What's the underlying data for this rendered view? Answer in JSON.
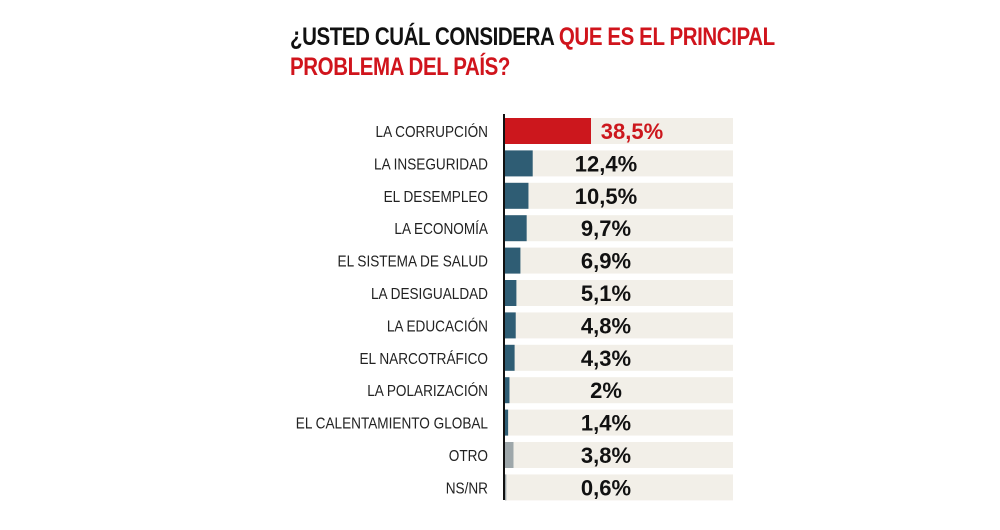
{
  "title": {
    "part1": "¿USTED CUÁL CONSIDERA ",
    "part2": "QUE ES EL PRINCIPAL",
    "part3": "PROBLEMA DEL PAÍS?"
  },
  "colors": {
    "highlight": "#cc171d",
    "main": "#2f5d74",
    "other": "#9ea7aa",
    "band": "#f2efe8",
    "title_red": "#d0141c"
  },
  "chart_data": {
    "type": "bar",
    "orientation": "horizontal",
    "categories": [
      "LA CORRUPCIÓN",
      "LA INSEGURIDAD",
      "EL DESEMPLEO",
      "LA ECONOMÍA",
      "EL SISTEMA DE SALUD",
      "LA DESIGUALDAD",
      "LA EDUCACIÓN",
      "EL NARCOTRÁFICO",
      "LA POLARIZACIÓN",
      "EL CALENTAMIENTO GLOBAL",
      "OTRO",
      "NS/NR"
    ],
    "values": [
      38.5,
      12.4,
      10.5,
      9.7,
      6.9,
      5.1,
      4.8,
      4.3,
      2,
      1.4,
      3.8,
      0.6
    ],
    "labels": [
      "38,5%",
      "12,4%",
      "10,5%",
      "9,7%",
      "6,9%",
      "5,1%",
      "4,8%",
      "4,3%",
      "2%",
      "1,4%",
      "3,8%",
      "0,6%"
    ],
    "groups": [
      "highlight",
      "main",
      "main",
      "main",
      "main",
      "main",
      "main",
      "main",
      "main",
      "main",
      "other",
      "other"
    ],
    "xlim": [
      0,
      100
    ]
  }
}
